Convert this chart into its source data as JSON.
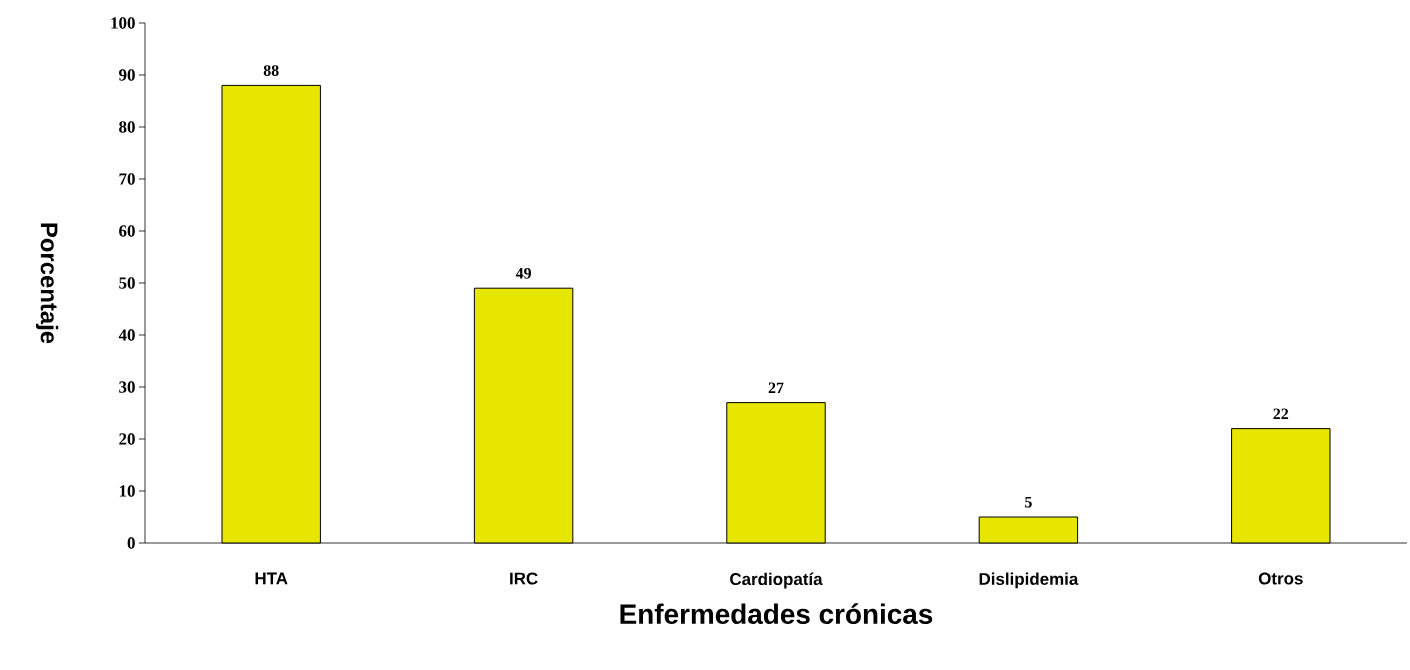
{
  "chart_data": {
    "type": "bar",
    "xlabel": "Enfermedades crónicas",
    "ylabel": "Porcentaje",
    "categories": [
      "HTA",
      "IRC",
      "Cardiopatía",
      "Dislipidemia",
      "Otros"
    ],
    "values": [
      88,
      49,
      27,
      5,
      22
    ],
    "color": "#e6e600",
    "ylim": [
      0,
      100
    ],
    "yticks": [
      0,
      10,
      20,
      30,
      40,
      50,
      60,
      70,
      80,
      90,
      100
    ],
    "data_labels": true,
    "grid": false
  }
}
